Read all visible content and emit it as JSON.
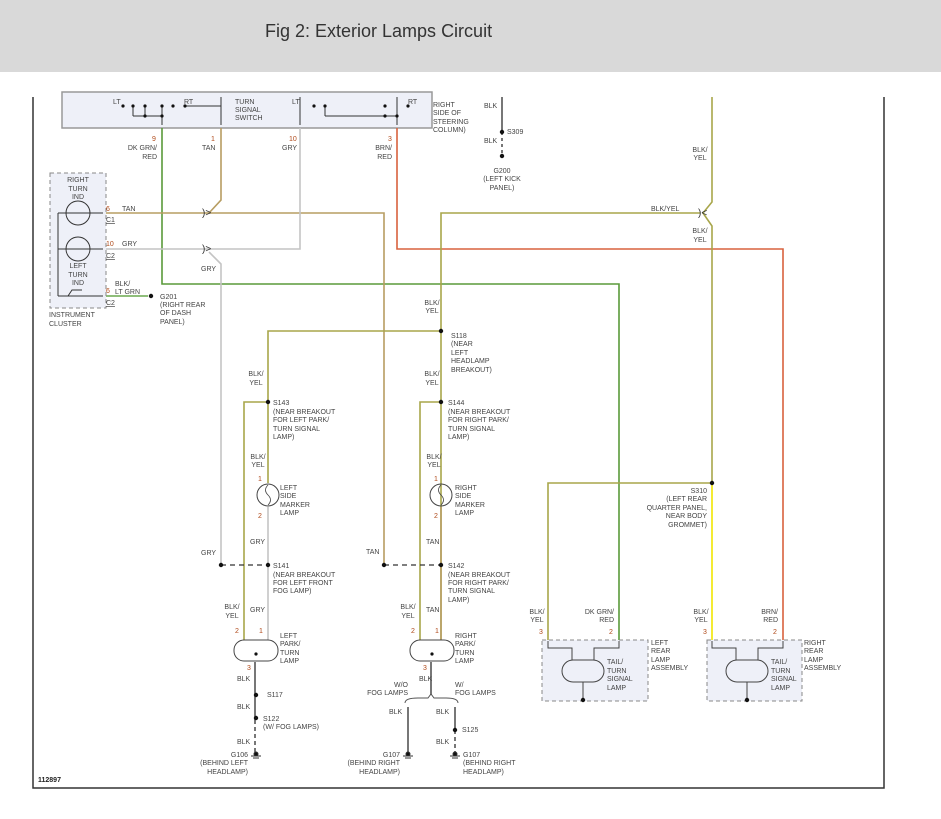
{
  "title": "Fig 2: Exterior Lamps Circuit",
  "figure_id": "112897",
  "wire_colors": {
    "dk_grn_red": "#5a9a3a",
    "tan": "#b79d62",
    "gry": "#c4c4c4",
    "brn_red": "#d8623e",
    "blk_yel": "#a8a64a",
    "yel": "#f2e600",
    "blk": "#555555",
    "blk_lt_grn": "#6aa84f"
  },
  "switch": {
    "lt1": "LT",
    "rt1": "RT",
    "lt2": "LT",
    "rt2": "RT",
    "name": [
      "TURN",
      "SIGNAL",
      "SWITCH"
    ],
    "location": [
      "RIGHT",
      "SIDE OF",
      "STEERING",
      "COLUMN)"
    ]
  },
  "pins": {
    "p9": "9",
    "p1": "1",
    "p10": "10",
    "p3": "3"
  },
  "wires": {
    "dkgrnred": [
      "DK GRN/",
      "RED"
    ],
    "tan": "TAN",
    "gry": "GRY",
    "brnred": [
      "BRN/",
      "RED"
    ],
    "blk": "BLK",
    "blkyel": "BLK/YEL",
    "blkyel2": [
      "BLK/",
      "YEL"
    ],
    "blkltgrn": [
      "BLK/",
      "LT GRN"
    ],
    "w_o_fog": [
      "W/O",
      "FOG LAMPS"
    ],
    "w_fog": [
      "W/",
      "FOG LAMPS"
    ]
  },
  "cluster": {
    "right": [
      "RIGHT",
      "TURN",
      "IND"
    ],
    "left": [
      "LEFT",
      "TURN",
      "IND"
    ],
    "name": [
      "INSTRUMENT",
      "CLUSTER"
    ],
    "c1": "C1",
    "c2": "C2",
    "pin6": "6",
    "pin10": "10"
  },
  "grounds": {
    "g200": [
      "G200",
      "(LEFT KICK",
      "PANEL)"
    ],
    "g201": [
      "G201",
      "(RIGHT REAR",
      "OF DASH",
      "PANEL)"
    ],
    "g106": [
      "G106",
      "(BEHIND LEFT",
      "HEADLAMP)"
    ],
    "g107": [
      "G107",
      "(BEHIND RIGHT",
      "HEADLAMP)"
    ]
  },
  "splices": {
    "s309": "S309",
    "s118": [
      "S118",
      "(NEAR",
      "LEFT",
      "HEADLAMP",
      "BREAKOUT)"
    ],
    "s143": [
      "S143",
      "(NEAR BREAKOUT",
      "FOR LEFT PARK/",
      "TURN SIGNAL",
      "LAMP)"
    ],
    "s144": [
      "S144",
      "(NEAR BREAKOUT",
      "FOR RIGHT PARK/",
      "TURN SIGNAL",
      "LAMP)"
    ],
    "s141": [
      "S141",
      "(NEAR BREAKOUT",
      "FOR LEFT FRONT",
      "FOG LAMP)"
    ],
    "s142": [
      "S142",
      "(NEAR BREAKOUT",
      "FOR RIGHT PARK/",
      "TURN SIGNAL",
      "LAMP)"
    ],
    "s310": [
      "S310",
      "(LEFT REAR",
      "QUARTER PANEL,",
      "NEAR BODY",
      "GROMMET)"
    ],
    "s117": "S117",
    "s122": [
      "S122",
      "(W/ FOG LAMPS)"
    ],
    "s125": "S125"
  },
  "lamps": {
    "left_side": [
      "LEFT",
      "SIDE",
      "MARKER",
      "LAMP"
    ],
    "right_side": [
      "RIGHT",
      "SIDE",
      "MARKER",
      "LAMP"
    ],
    "left_park": [
      "LEFT",
      "PARK/",
      "TURN",
      "LAMP"
    ],
    "right_park": [
      "RIGHT",
      "PARK/",
      "TURN",
      "LAMP"
    ],
    "tail": [
      "TAIL/",
      "TURN",
      "SIGNAL",
      "LAMP"
    ],
    "left_rear": [
      "LEFT",
      "REAR",
      "LAMP",
      "ASSEMBLY"
    ],
    "right_rear": [
      "RIGHT",
      "REAR",
      "LAMP",
      "ASSEMBLY"
    ]
  },
  "lamp_pins": {
    "one": "1",
    "two": "2",
    "three": "3"
  }
}
